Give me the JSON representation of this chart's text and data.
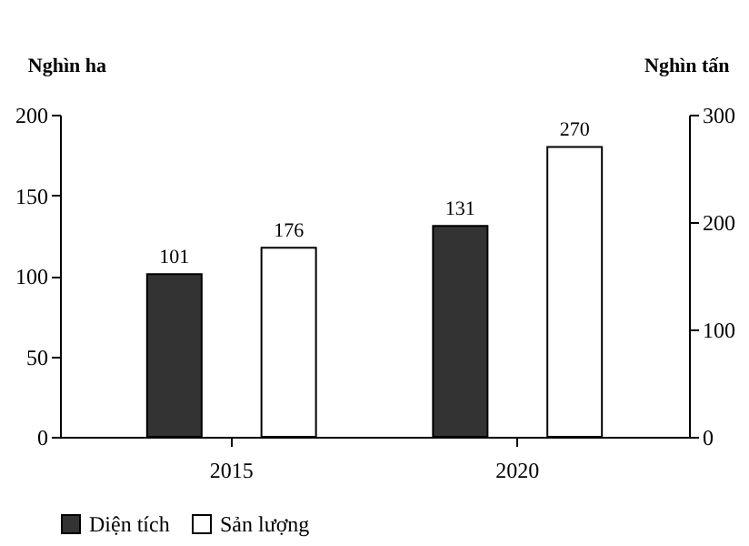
{
  "chart_data": {
    "type": "bar",
    "categories": [
      "2015",
      "2020"
    ],
    "ylabel": "Nghìn ha",
    "y2label": "Nghìn tấn",
    "ylim": [
      0,
      200
    ],
    "yticks": [
      0,
      50,
      100,
      150,
      200
    ],
    "y2lim": [
      0,
      300
    ],
    "y2ticks": [
      0,
      100,
      200,
      300
    ],
    "series": [
      {
        "name": "Diện tích",
        "color": "#333333",
        "values": [
          101,
          131
        ]
      },
      {
        "name": "Sản lượng",
        "color": "#ffffff",
        "values": [
          176,
          270
        ],
        "axis": "y2"
      }
    ],
    "data_labels": true,
    "legend": "bottom",
    "grid": false
  }
}
